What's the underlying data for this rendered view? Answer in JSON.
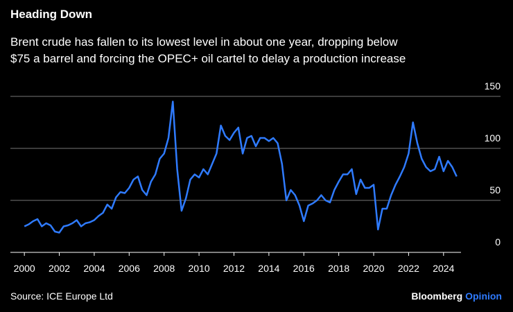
{
  "chart_data": {
    "type": "line",
    "title": "Heading Down",
    "subtitle": [
      "Brent crude has fallen to its lowest level in about one year, dropping below",
      "$75 a barrel and forcing the OPEC+ oil cartel to delay a production increase"
    ],
    "source": "Source: ICE Europe Ltd",
    "x": [
      2000.0,
      2000.25,
      2000.5,
      2000.75,
      2001.0,
      2001.25,
      2001.5,
      2001.75,
      2002.0,
      2002.25,
      2002.5,
      2002.75,
      2003.0,
      2003.25,
      2003.5,
      2003.75,
      2004.0,
      2004.25,
      2004.5,
      2004.75,
      2005.0,
      2005.25,
      2005.5,
      2005.75,
      2006.0,
      2006.25,
      2006.5,
      2006.75,
      2007.0,
      2007.25,
      2007.5,
      2007.75,
      2008.0,
      2008.25,
      2008.5,
      2008.75,
      2009.0,
      2009.25,
      2009.5,
      2009.75,
      2010.0,
      2010.25,
      2010.5,
      2010.75,
      2011.0,
      2011.25,
      2011.5,
      2011.75,
      2012.0,
      2012.25,
      2012.5,
      2012.75,
      2013.0,
      2013.25,
      2013.5,
      2013.75,
      2014.0,
      2014.25,
      2014.5,
      2014.75,
      2015.0,
      2015.25,
      2015.5,
      2015.75,
      2016.0,
      2016.25,
      2016.5,
      2016.75,
      2017.0,
      2017.25,
      2017.5,
      2017.75,
      2018.0,
      2018.25,
      2018.5,
      2018.75,
      2019.0,
      2019.25,
      2019.5,
      2019.75,
      2020.0,
      2020.25,
      2020.5,
      2020.75,
      2021.0,
      2021.25,
      2021.5,
      2021.75,
      2022.0,
      2022.25,
      2022.5,
      2022.75,
      2023.0,
      2023.25,
      2023.5,
      2023.75,
      2024.0,
      2024.25,
      2024.5,
      2024.75
    ],
    "series": [
      {
        "color": "#2f7bff",
        "values": [
          25,
          27,
          30,
          32,
          25,
          28,
          26,
          20,
          19,
          25,
          26,
          28,
          31,
          25,
          28,
          29,
          31,
          35,
          38,
          46,
          42,
          53,
          58,
          57,
          62,
          70,
          73,
          60,
          55,
          68,
          75,
          90,
          95,
          110,
          145,
          80,
          40,
          52,
          70,
          75,
          72,
          80,
          75,
          85,
          95,
          122,
          112,
          108,
          115,
          120,
          95,
          110,
          112,
          102,
          110,
          110,
          107,
          110,
          105,
          85,
          50,
          60,
          55,
          45,
          30,
          45,
          47,
          50,
          55,
          50,
          48,
          60,
          68,
          75,
          75,
          80,
          56,
          70,
          62,
          62,
          65,
          22,
          42,
          42,
          55,
          65,
          73,
          82,
          95,
          125,
          105,
          90,
          82,
          78,
          80,
          92,
          78,
          88,
          82,
          73
        ]
      }
    ],
    "xlim": [
      1999.2,
      2025
    ],
    "xticks": [
      2000,
      2002,
      2004,
      2006,
      2008,
      2010,
      2012,
      2014,
      2016,
      2018,
      2020,
      2022,
      2024
    ],
    "ylim": [
      0,
      150
    ],
    "yticks": [
      0,
      50,
      100,
      150
    ],
    "grid": true
  },
  "branding": {
    "name": "Bloomberg",
    "section": "Opinion"
  }
}
